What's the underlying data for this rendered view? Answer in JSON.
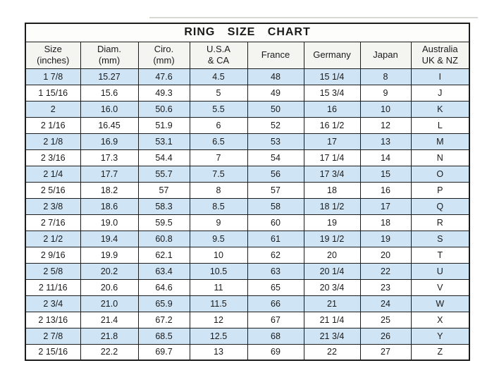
{
  "chart_data": {
    "type": "table",
    "title": "RING SIZE CHART",
    "columns": [
      {
        "key": "size-inches",
        "label": "Size",
        "sub": "(inches)"
      },
      {
        "key": "diam-mm",
        "label": "Diam.",
        "sub": "(mm)"
      },
      {
        "key": "ciro-mm",
        "label": "Ciro.",
        "sub": "(mm)"
      },
      {
        "key": "usa-ca",
        "label": "U.S.A",
        "sub": "& CA"
      },
      {
        "key": "france",
        "label": "France",
        "sub": ""
      },
      {
        "key": "germany",
        "label": "Germany",
        "sub": ""
      },
      {
        "key": "japan",
        "label": "Japan",
        "sub": ""
      },
      {
        "key": "australia-uk-nz",
        "label": "Australia",
        "sub": "UK & NZ"
      }
    ],
    "rows": [
      [
        "1 7/8",
        "15.27",
        "47.6",
        "4.5",
        "48",
        "15 1/4",
        "8",
        "I"
      ],
      [
        "1 15/16",
        "15.6",
        "49.3",
        "5",
        "49",
        "15 3/4",
        "9",
        "J"
      ],
      [
        "2",
        "16.0",
        "50.6",
        "5.5",
        "50",
        "16",
        "10",
        "K"
      ],
      [
        "2 1/16",
        "16.45",
        "51.9",
        "6",
        "52",
        "16 1/2",
        "12",
        "L"
      ],
      [
        "2 1/8",
        "16.9",
        "53.1",
        "6.5",
        "53",
        "17",
        "13",
        "M"
      ],
      [
        "2 3/16",
        "17.3",
        "54.4",
        "7",
        "54",
        "17 1/4",
        "14",
        "N"
      ],
      [
        "2 1/4",
        "17.7",
        "55.7",
        "7.5",
        "56",
        "17 3/4",
        "15",
        "O"
      ],
      [
        "2 5/16",
        "18.2",
        "57",
        "8",
        "57",
        "18",
        "16",
        "P"
      ],
      [
        "2 3/8",
        "18.6",
        "58.3",
        "8.5",
        "58",
        "18 1/2",
        "17",
        "Q"
      ],
      [
        "2 7/16",
        "19.0",
        "59.5",
        "9",
        "60",
        "19",
        "18",
        "R"
      ],
      [
        "2 1/2",
        "19.4",
        "60.8",
        "9.5",
        "61",
        "19 1/2",
        "19",
        "S"
      ],
      [
        "2 9/16",
        "19.9",
        "62.1",
        "10",
        "62",
        "20",
        "20",
        "T"
      ],
      [
        "2 5/8",
        "20.2",
        "63.4",
        "10.5",
        "63",
        "20 1/4",
        "22",
        "U"
      ],
      [
        "2 11/16",
        "20.6",
        "64.6",
        "11",
        "65",
        "20 3/4",
        "23",
        "V"
      ],
      [
        "2 3/4",
        "21.0",
        "65.9",
        "11.5",
        "66",
        "21",
        "24",
        "W"
      ],
      [
        "2 13/16",
        "21.4",
        "67.2",
        "12",
        "67",
        "21 1/4",
        "25",
        "X"
      ],
      [
        "2 7/8",
        "21.8",
        "68.5",
        "12.5",
        "68",
        "21 3/4",
        "26",
        "Y"
      ],
      [
        "2 15/16",
        "22.2",
        "69.7",
        "13",
        "69",
        "22",
        "27",
        "Z"
      ]
    ]
  },
  "colors": {
    "row_alt_bg": "#cfe4f5",
    "row_bg": "#ffffff",
    "header_bg": "#f4f4f1",
    "title_bg": "#fdfdfb",
    "border": "#1c1c1c",
    "text": "#1a1a1a"
  }
}
